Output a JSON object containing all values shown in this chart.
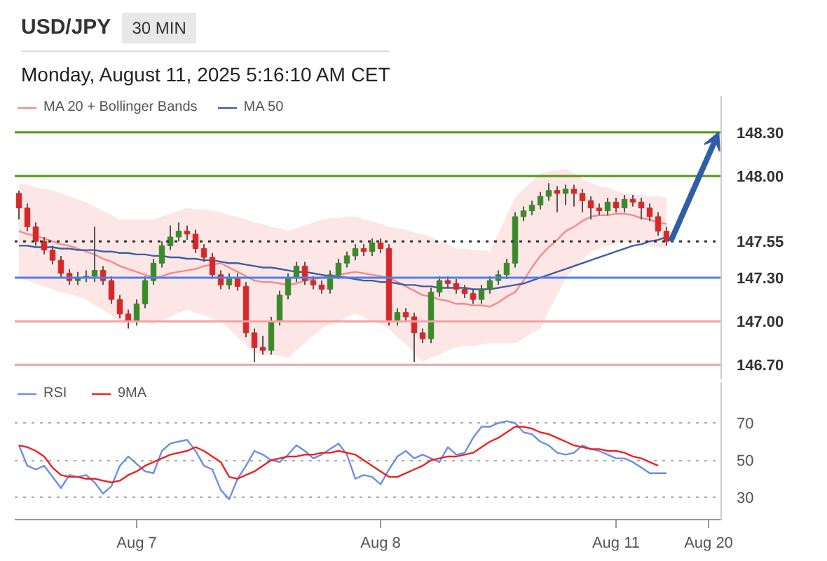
{
  "chart_data": [
    {
      "type": "candlestick",
      "title": "USD/JPY",
      "subtitle": "30 MIN",
      "annotations": [
        "Monday, August 11, 2025 5:16:10 AM CET"
      ],
      "categories": [
        null,
        null,
        null,
        null,
        null,
        null,
        null,
        null,
        null,
        null,
        null,
        null,
        null,
        null,
        null,
        null,
        null,
        null,
        null,
        null,
        null,
        null,
        null,
        null,
        null,
        null,
        null,
        null,
        null,
        null,
        null,
        null,
        null,
        null,
        null,
        null,
        null,
        null,
        null,
        null,
        null,
        null,
        null,
        null,
        null,
        null,
        null,
        null,
        null,
        null,
        null,
        null,
        null,
        null,
        null,
        null,
        null,
        null,
        null,
        null,
        null,
        null,
        null,
        null,
        null,
        null,
        null,
        null,
        null,
        null,
        null,
        null,
        null,
        null,
        null,
        null,
        null,
        null,
        null,
        null,
        null,
        null,
        null,
        null
      ],
      "ohlc": [
        [
          147.88,
          147.9,
          147.7,
          147.78
        ],
        [
          147.78,
          147.81,
          147.62,
          147.65
        ],
        [
          147.65,
          147.68,
          147.52,
          147.55
        ],
        [
          147.55,
          147.58,
          147.46,
          147.49
        ],
        [
          147.49,
          147.52,
          147.39,
          147.42
        ],
        [
          147.42,
          147.45,
          147.3,
          147.33
        ],
        [
          147.33,
          147.36,
          147.25,
          147.28
        ],
        [
          147.28,
          147.34,
          147.25,
          147.3
        ],
        [
          147.3,
          147.35,
          147.27,
          147.31
        ],
        [
          147.31,
          147.65,
          147.27,
          147.35
        ],
        [
          147.35,
          147.38,
          147.25,
          147.28
        ],
        [
          147.28,
          147.31,
          147.12,
          147.15
        ],
        [
          147.15,
          147.18,
          147.02,
          147.05
        ],
        [
          147.05,
          147.08,
          146.95,
          147.0
        ],
        [
          147.0,
          147.15,
          146.97,
          147.12
        ],
        [
          147.12,
          147.31,
          147.09,
          147.28
        ],
        [
          147.28,
          147.43,
          147.25,
          147.4
        ],
        [
          147.4,
          147.55,
          147.37,
          147.52
        ],
        [
          147.52,
          147.66,
          147.49,
          147.58
        ],
        [
          147.58,
          147.68,
          147.55,
          147.62
        ],
        [
          147.62,
          147.66,
          147.56,
          147.6
        ],
        [
          147.6,
          147.63,
          147.47,
          147.5
        ],
        [
          147.5,
          147.53,
          147.41,
          147.44
        ],
        [
          147.44,
          147.47,
          147.29,
          147.32
        ],
        [
          147.32,
          147.35,
          147.22,
          147.25
        ],
        [
          147.25,
          147.33,
          147.22,
          147.3
        ],
        [
          147.3,
          147.33,
          147.21,
          147.24
        ],
        [
          147.24,
          147.27,
          146.89,
          146.92
        ],
        [
          146.92,
          146.95,
          146.72,
          146.82
        ],
        [
          146.82,
          146.9,
          146.77,
          146.8
        ],
        [
          146.8,
          147.03,
          146.77,
          147.0
        ],
        [
          147.0,
          147.21,
          146.97,
          147.18
        ],
        [
          147.18,
          147.33,
          147.15,
          147.3
        ],
        [
          147.3,
          147.41,
          147.27,
          147.38
        ],
        [
          147.38,
          147.41,
          147.25,
          147.28
        ],
        [
          147.28,
          147.31,
          147.22,
          147.25
        ],
        [
          147.25,
          147.28,
          147.19,
          147.22
        ],
        [
          147.22,
          147.35,
          147.19,
          147.32
        ],
        [
          147.32,
          147.43,
          147.29,
          147.4
        ],
        [
          147.4,
          147.48,
          147.37,
          147.45
        ],
        [
          147.45,
          147.53,
          147.42,
          147.5
        ],
        [
          147.5,
          147.53,
          147.45,
          147.48
        ],
        [
          147.48,
          147.57,
          147.45,
          147.54
        ],
        [
          147.54,
          147.57,
          147.47,
          147.5
        ],
        [
          147.5,
          147.53,
          146.97,
          147.0
        ],
        [
          147.0,
          147.09,
          146.97,
          147.06
        ],
        [
          147.06,
          147.09,
          147.0,
          147.03
        ],
        [
          147.03,
          147.06,
          146.72,
          146.92
        ],
        [
          146.92,
          146.95,
          146.85,
          146.88
        ],
        [
          146.88,
          147.23,
          146.85,
          147.2
        ],
        [
          147.2,
          147.31,
          147.17,
          147.28
        ],
        [
          147.28,
          147.31,
          147.23,
          147.26
        ],
        [
          147.26,
          147.29,
          147.19,
          147.22
        ],
        [
          147.22,
          147.25,
          147.16,
          147.19
        ],
        [
          147.19,
          147.22,
          147.12,
          147.15
        ],
        [
          147.15,
          147.25,
          147.12,
          147.22
        ],
        [
          147.22,
          147.31,
          147.19,
          147.28
        ],
        [
          147.28,
          147.35,
          147.25,
          147.32
        ],
        [
          147.32,
          147.43,
          147.29,
          147.4
        ],
        [
          147.4,
          147.75,
          147.37,
          147.72
        ],
        [
          147.72,
          147.79,
          147.69,
          147.76
        ],
        [
          147.76,
          147.83,
          147.73,
          147.8
        ],
        [
          147.8,
          147.89,
          147.77,
          147.86
        ],
        [
          147.86,
          147.95,
          147.83,
          147.9
        ],
        [
          147.9,
          147.93,
          147.75,
          147.88
        ],
        [
          147.88,
          147.94,
          147.8,
          147.91
        ],
        [
          147.91,
          147.94,
          147.79,
          147.88
        ],
        [
          147.88,
          147.91,
          147.75,
          147.83
        ],
        [
          147.83,
          147.86,
          147.7,
          147.78
        ],
        [
          147.78,
          147.81,
          147.73,
          147.76
        ],
        [
          147.76,
          147.85,
          147.73,
          147.82
        ],
        [
          147.82,
          147.85,
          147.75,
          147.78
        ],
        [
          147.78,
          147.87,
          147.75,
          147.84
        ],
        [
          147.84,
          147.87,
          147.79,
          147.82
        ],
        [
          147.82,
          147.85,
          147.7,
          147.78
        ],
        [
          147.78,
          147.81,
          147.69,
          147.72
        ],
        [
          147.72,
          147.75,
          147.59,
          147.62
        ],
        [
          147.62,
          147.65,
          147.52,
          147.55
        ],
        null,
        null,
        null,
        null,
        null,
        null
      ],
      "colors": [
        "#d62828",
        "#d62828",
        "#d62828",
        "#d62828",
        "#d62828",
        "#d62828",
        "#d62828",
        "#3a8a2a",
        "#3a8a2a",
        "#3a8a2a",
        "#d62828",
        "#d62828",
        "#d62828",
        "#d62828",
        "#3a8a2a",
        "#3a8a2a",
        "#3a8a2a",
        "#3a8a2a",
        "#3a8a2a",
        "#3a8a2a",
        "#d62828",
        "#d62828",
        "#d62828",
        "#d62828",
        "#d62828",
        "#3a8a2a",
        "#d62828",
        "#d62828",
        "#d62828",
        "#d62828",
        "#3a8a2a",
        "#3a8a2a",
        "#3a8a2a",
        "#3a8a2a",
        "#d62828",
        "#d62828",
        "#d62828",
        "#3a8a2a",
        "#3a8a2a",
        "#3a8a2a",
        "#3a8a2a",
        "#d62828",
        "#3a8a2a",
        "#d62828",
        "#d62828",
        "#3a8a2a",
        "#d62828",
        "#d62828",
        "#d62828",
        "#3a8a2a",
        "#3a8a2a",
        "#d62828",
        "#d62828",
        "#d62828",
        "#d62828",
        "#3a8a2a",
        "#3a8a2a",
        "#3a8a2a",
        "#3a8a2a",
        "#3a8a2a",
        "#3a8a2a",
        "#3a8a2a",
        "#3a8a2a",
        "#3a8a2a",
        "#d62828",
        "#3a8a2a",
        "#d62828",
        "#d62828",
        "#d62828",
        "#d62828",
        "#3a8a2a",
        "#d62828",
        "#3a8a2a",
        "#d62828",
        "#d62828",
        "#d62828",
        "#d62828",
        "#d62828",
        null,
        null,
        null,
        null,
        null,
        null
      ],
      "series": [
        {
          "name": "MA 20 + Bollinger Bands",
          "type": "line",
          "color": "#f28b8b",
          "values": [
            147.62,
            147.6,
            147.59,
            147.57,
            147.55,
            147.53,
            147.52,
            147.5,
            147.48,
            147.46,
            147.43,
            147.41,
            147.38,
            147.36,
            147.34,
            147.32,
            147.3,
            147.31,
            147.33,
            147.34,
            147.35,
            147.36,
            147.38,
            147.39,
            147.4,
            147.37,
            147.34,
            147.31,
            147.28,
            147.27,
            147.27,
            147.26,
            147.25,
            147.26,
            147.28,
            147.29,
            147.3,
            147.31,
            147.32,
            147.33,
            147.34,
            147.33,
            147.32,
            147.31,
            147.3,
            147.27,
            147.24,
            147.21,
            147.18,
            147.17,
            147.15,
            147.14,
            147.12,
            147.12,
            147.11,
            147.11,
            147.1,
            147.13,
            147.17,
            147.2,
            147.28,
            147.37,
            147.45,
            147.51,
            147.56,
            147.62,
            147.65,
            147.69,
            147.72,
            147.73,
            147.73,
            147.74,
            147.74,
            147.73,
            147.71,
            147.7,
            147.68,
            147.67,
            null,
            null,
            null,
            null,
            null,
            null
          ],
          "upper": [
            147.95,
            147.94,
            147.92,
            147.91,
            147.9,
            147.88,
            147.86,
            147.84,
            147.82,
            147.79,
            147.76,
            147.73,
            147.7,
            147.7,
            147.7,
            147.7,
            147.7,
            147.72,
            147.74,
            147.76,
            147.78,
            147.77,
            147.77,
            147.76,
            147.75,
            147.73,
            147.72,
            147.7,
            147.68,
            147.67,
            147.65,
            147.64,
            147.62,
            147.64,
            147.66,
            147.68,
            147.7,
            147.71,
            147.71,
            147.72,
            147.72,
            147.7,
            147.69,
            147.67,
            147.65,
            147.64,
            147.63,
            147.61,
            147.6,
            147.58,
            147.55,
            147.53,
            147.5,
            147.5,
            147.49,
            147.49,
            147.48,
            147.6,
            147.73,
            147.85,
            147.91,
            147.96,
            148.02,
            148.03,
            148.04,
            148.05,
            148.02,
            147.98,
            147.95,
            147.93,
            147.92,
            147.9,
            147.88,
            147.87,
            147.87,
            147.86,
            147.86,
            147.85,
            null,
            null,
            null,
            null,
            null,
            null
          ],
          "lower": [
            147.3,
            147.28,
            147.26,
            147.24,
            147.22,
            147.2,
            147.19,
            147.17,
            147.15,
            147.11,
            147.08,
            147.04,
            147.0,
            147.0,
            146.99,
            146.99,
            146.98,
            147.01,
            147.03,
            147.06,
            147.08,
            147.06,
            147.04,
            147.02,
            147.0,
            146.95,
            146.89,
            146.84,
            146.78,
            146.77,
            146.77,
            146.76,
            146.75,
            146.8,
            146.85,
            146.9,
            146.95,
            146.98,
            147.0,
            147.03,
            147.05,
            147.03,
            147.0,
            146.98,
            146.95,
            146.89,
            146.84,
            146.78,
            146.72,
            146.75,
            146.77,
            146.8,
            146.82,
            146.83,
            146.83,
            146.84,
            146.85,
            146.85,
            146.85,
            146.85,
            146.88,
            146.92,
            146.95,
            147.07,
            147.18,
            147.3,
            147.36,
            147.42,
            147.48,
            147.5,
            147.52,
            147.53,
            147.55,
            147.54,
            147.53,
            147.52,
            147.51,
            147.5,
            null,
            null,
            null,
            null,
            null,
            null
          ]
        },
        {
          "name": "MA 50",
          "type": "line",
          "color": "#3d5fa3",
          "values": [
            147.52,
            147.52,
            147.51,
            147.51,
            147.51,
            147.5,
            147.5,
            147.49,
            147.49,
            147.49,
            147.48,
            147.48,
            147.47,
            147.47,
            147.46,
            147.46,
            147.45,
            147.45,
            147.44,
            147.44,
            147.43,
            147.43,
            147.42,
            147.42,
            147.41,
            147.4,
            147.4,
            147.39,
            147.38,
            147.37,
            147.37,
            147.36,
            147.35,
            147.34,
            147.34,
            147.33,
            147.32,
            147.31,
            147.31,
            147.3,
            147.29,
            147.28,
            147.28,
            147.27,
            147.27,
            147.26,
            147.25,
            147.25,
            147.24,
            147.24,
            147.23,
            147.23,
            147.23,
            147.23,
            147.22,
            147.22,
            147.22,
            147.23,
            147.24,
            147.25,
            147.26,
            147.28,
            147.3,
            147.32,
            147.34,
            147.36,
            147.38,
            147.4,
            147.42,
            147.44,
            147.46,
            147.48,
            147.5,
            147.52,
            147.53,
            147.55,
            147.56,
            147.58,
            null,
            null,
            null,
            null,
            null,
            null
          ]
        }
      ],
      "ref_lines": [
        {
          "axis": "y",
          "value": 148.3,
          "label": "148.30",
          "color": "#4e9a0f"
        },
        {
          "axis": "y",
          "value": 148.0,
          "label": "148.00",
          "color": "#4e9a0f"
        },
        {
          "axis": "y",
          "value": 147.55,
          "label": "147.55",
          "color": "#333333",
          "line_style": "dotted"
        },
        {
          "axis": "y",
          "value": 147.3,
          "label": "147.30",
          "color": "#4f7fea"
        },
        {
          "axis": "y",
          "value": 147.0,
          "label": "147.00",
          "color": "#f4a3a3"
        },
        {
          "axis": "y",
          "value": 146.7,
          "label": "146.70",
          "color": "#f4a3a3"
        }
      ],
      "ylim": [
        146.6,
        148.55
      ],
      "legend": "top left"
    },
    {
      "type": "line",
      "categories": [
        null,
        null,
        null,
        null,
        null,
        null,
        null,
        null,
        null,
        null,
        null,
        null,
        null,
        null,
        "Aug 7",
        null,
        null,
        null,
        null,
        null,
        null,
        null,
        null,
        null,
        null,
        null,
        null,
        null,
        null,
        null,
        null,
        null,
        null,
        null,
        null,
        null,
        null,
        null,
        null,
        null,
        null,
        null,
        null,
        "Aug 8",
        null,
        null,
        null,
        null,
        null,
        null,
        null,
        null,
        null,
        null,
        null,
        null,
        null,
        null,
        null,
        null,
        null,
        null,
        null,
        null,
        null,
        null,
        null,
        null,
        null,
        null,
        null,
        "Aug 11",
        null,
        null,
        null,
        null,
        null,
        null,
        null,
        null,
        null,
        null,
        "Aug 20",
        null
      ],
      "series": [
        {
          "name": "RSI",
          "color": "#6b8ee8",
          "values": [
            58,
            47,
            45,
            47,
            41,
            35,
            42,
            41,
            42,
            38,
            32,
            36,
            47,
            52,
            48,
            44,
            43,
            55,
            59,
            60,
            61,
            55,
            47,
            45,
            34,
            29,
            40,
            47,
            55,
            53,
            50,
            49,
            53,
            58,
            55,
            51,
            53,
            56,
            59,
            53,
            40,
            42,
            41,
            37,
            45,
            52,
            55,
            51,
            53,
            51,
            49,
            57,
            53,
            54,
            62,
            68,
            68,
            70,
            71,
            70,
            65,
            64,
            60,
            58,
            54,
            53,
            54,
            58,
            56,
            55,
            53,
            51,
            51,
            49,
            46,
            43,
            43,
            43,
            null,
            null,
            null,
            null,
            null,
            null
          ]
        },
        {
          "name": "9MA",
          "color": "#ee2222",
          "values": [
            58,
            57,
            55,
            52,
            46,
            42,
            41,
            41,
            40,
            40,
            39,
            38,
            39,
            42,
            44,
            47,
            49,
            51,
            53,
            54,
            55,
            57,
            55,
            52,
            49,
            41,
            40,
            42,
            44,
            47,
            50,
            51,
            52,
            52,
            53,
            53,
            54,
            54,
            55,
            54,
            53,
            50,
            47,
            44,
            41,
            41,
            43,
            45,
            47,
            50,
            51,
            52,
            52,
            53,
            54,
            57,
            60,
            62,
            65,
            68,
            68,
            67,
            65,
            64,
            62,
            60,
            58,
            57,
            56,
            56,
            55,
            55,
            54,
            52,
            51,
            49,
            47,
            null,
            null,
            null,
            null,
            null,
            null,
            null
          ]
        }
      ],
      "ylim": [
        18,
        92
      ],
      "yticks": [
        30,
        50,
        70
      ],
      "grid": "y",
      "legend": "top left"
    }
  ]
}
